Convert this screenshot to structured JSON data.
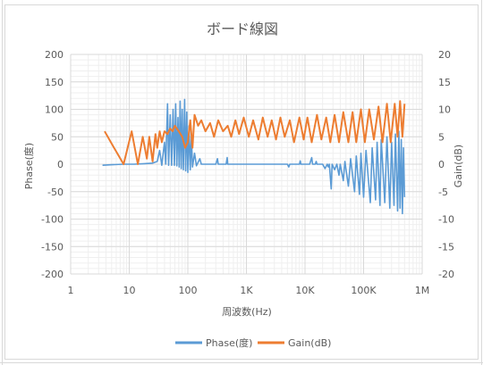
{
  "chart_data": {
    "type": "line",
    "title": "ボード線図",
    "xlabel": "周波数(Hz)",
    "ylabel_left": "Phase(度)",
    "ylabel_right": "Gain(dB)",
    "x_scale": "log",
    "xlim": [
      1,
      1000000
    ],
    "x_ticks": [
      1,
      10,
      100,
      1000,
      10000,
      100000,
      1000000
    ],
    "x_tick_labels": [
      "1",
      "10",
      "100",
      "1K",
      "10K",
      "100K",
      "1M"
    ],
    "ylim_left": [
      -200,
      200
    ],
    "y_ticks_left": [
      "-200",
      "-150",
      "-100",
      "-50",
      "0",
      "50",
      "100",
      "150",
      "200"
    ],
    "ylim_right": [
      -20,
      20
    ],
    "y_ticks_right": [
      "-20",
      "-15",
      "-10",
      "-5",
      "0",
      "5",
      "10",
      "15",
      "20"
    ],
    "grid": true,
    "legend": "bottom",
    "series": [
      {
        "name": "Phase(度)",
        "axis": "left",
        "color": "#5b9bd5",
        "points": [
          [
            3.5,
            -2
          ],
          [
            5,
            -1
          ],
          [
            8,
            0
          ],
          [
            12,
            0
          ],
          [
            18,
            1
          ],
          [
            25,
            2
          ],
          [
            30,
            5
          ],
          [
            33,
            25
          ],
          [
            36,
            -2
          ],
          [
            40,
            40
          ],
          [
            42,
            0
          ],
          [
            45,
            110
          ],
          [
            47,
            -2
          ],
          [
            50,
            90
          ],
          [
            53,
            -2
          ],
          [
            56,
            100
          ],
          [
            59,
            -2
          ],
          [
            62,
            110
          ],
          [
            65,
            -3
          ],
          [
            68,
            85
          ],
          [
            71,
            -5
          ],
          [
            74,
            115
          ],
          [
            77,
            -8
          ],
          [
            80,
            100
          ],
          [
            84,
            -10
          ],
          [
            88,
            118
          ],
          [
            92,
            -12
          ],
          [
            96,
            95
          ],
          [
            100,
            -15
          ],
          [
            105,
            70
          ],
          [
            110,
            -10
          ],
          [
            115,
            50
          ],
          [
            120,
            -5
          ],
          [
            130,
            20
          ],
          [
            140,
            -3
          ],
          [
            160,
            10
          ],
          [
            170,
            0
          ],
          [
            300,
            0
          ],
          [
            320,
            10
          ],
          [
            330,
            0
          ],
          [
            450,
            0
          ],
          [
            470,
            12
          ],
          [
            480,
            0
          ],
          [
            1000,
            0
          ],
          [
            2000,
            0
          ],
          [
            3000,
            0
          ],
          [
            5000,
            0
          ],
          [
            5300,
            -5
          ],
          [
            5500,
            0
          ],
          [
            8000,
            0
          ],
          [
            8300,
            6
          ],
          [
            8500,
            0
          ],
          [
            12000,
            0
          ],
          [
            13000,
            12
          ],
          [
            13500,
            0
          ],
          [
            15000,
            0
          ],
          [
            15500,
            5
          ],
          [
            16000,
            0
          ],
          [
            20000,
            0
          ],
          [
            22000,
            -8
          ],
          [
            24000,
            0
          ],
          [
            25000,
            -5
          ],
          [
            26000,
            0
          ],
          [
            28000,
            -45
          ],
          [
            29000,
            0
          ],
          [
            32000,
            -10
          ],
          [
            35000,
            0
          ],
          [
            38000,
            -20
          ],
          [
            40000,
            0
          ],
          [
            45000,
            -30
          ],
          [
            48000,
            5
          ],
          [
            55000,
            -40
          ],
          [
            60000,
            10
          ],
          [
            70000,
            -50
          ],
          [
            75000,
            15
          ],
          [
            85000,
            -55
          ],
          [
            90000,
            20
          ],
          [
            100000,
            -60
          ],
          [
            110000,
            25
          ],
          [
            130000,
            -70
          ],
          [
            140000,
            30
          ],
          [
            160000,
            -65
          ],
          [
            170000,
            40
          ],
          [
            190000,
            -75
          ],
          [
            200000,
            45
          ],
          [
            230000,
            -70
          ],
          [
            250000,
            50
          ],
          [
            280000,
            -80
          ],
          [
            300000,
            40
          ],
          [
            330000,
            -75
          ],
          [
            350000,
            55
          ],
          [
            380000,
            -85
          ],
          [
            400000,
            60
          ],
          [
            420000,
            -80
          ],
          [
            440000,
            45
          ],
          [
            460000,
            -90
          ],
          [
            480000,
            30
          ],
          [
            500000,
            -60
          ]
        ]
      },
      {
        "name": "Gain(dB)",
        "axis": "right",
        "color": "#ed7d31",
        "points": [
          [
            3.8,
            6
          ],
          [
            5.5,
            3
          ],
          [
            8,
            0
          ],
          [
            11,
            6
          ],
          [
            14,
            0
          ],
          [
            17,
            5
          ],
          [
            20,
            1
          ],
          [
            22,
            5
          ],
          [
            25,
            0.5
          ],
          [
            28,
            5.5
          ],
          [
            30,
            3
          ],
          [
            33,
            6
          ],
          [
            36,
            4
          ],
          [
            40,
            6
          ],
          [
            45,
            5.5
          ],
          [
            50,
            6.5
          ],
          [
            55,
            6
          ],
          [
            60,
            7
          ],
          [
            65,
            6.5
          ],
          [
            70,
            6
          ],
          [
            75,
            5.5
          ],
          [
            80,
            5
          ],
          [
            90,
            3
          ],
          [
            100,
            4
          ],
          [
            110,
            8
          ],
          [
            120,
            3
          ],
          [
            130,
            9
          ],
          [
            150,
            7
          ],
          [
            170,
            8
          ],
          [
            200,
            6
          ],
          [
            240,
            7.5
          ],
          [
            280,
            5
          ],
          [
            330,
            8
          ],
          [
            400,
            6
          ],
          [
            480,
            7
          ],
          [
            550,
            5
          ],
          [
            650,
            8
          ],
          [
            750,
            5.5
          ],
          [
            900,
            8.5
          ],
          [
            1100,
            5
          ],
          [
            1300,
            8
          ],
          [
            1600,
            4.5
          ],
          [
            1900,
            8.5
          ],
          [
            2300,
            5
          ],
          [
            2700,
            8
          ],
          [
            3200,
            4.5
          ],
          [
            3800,
            8.5
          ],
          [
            4500,
            5
          ],
          [
            5500,
            8
          ],
          [
            6500,
            4
          ],
          [
            8000,
            8.5
          ],
          [
            9500,
            4.5
          ],
          [
            11000,
            8.5
          ],
          [
            13000,
            4
          ],
          [
            16000,
            9
          ],
          [
            19000,
            4.5
          ],
          [
            23000,
            8.5
          ],
          [
            27000,
            4
          ],
          [
            32000,
            9
          ],
          [
            38000,
            4
          ],
          [
            45000,
            9.5
          ],
          [
            55000,
            4
          ],
          [
            65000,
            9.5
          ],
          [
            75000,
            4
          ],
          [
            90000,
            10
          ],
          [
            105000,
            4
          ],
          [
            125000,
            10
          ],
          [
            150000,
            4.5
          ],
          [
            180000,
            10.5
          ],
          [
            210000,
            4
          ],
          [
            250000,
            11
          ],
          [
            290000,
            4
          ],
          [
            340000,
            11
          ],
          [
            380000,
            5
          ],
          [
            420000,
            11.5
          ],
          [
            460000,
            5
          ],
          [
            500000,
            11
          ]
        ]
      }
    ]
  }
}
